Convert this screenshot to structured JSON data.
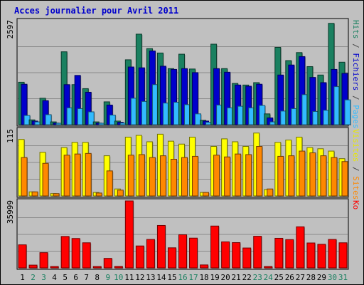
{
  "chart_data": {
    "type": "bar",
    "title": "Acces journalier pour Avril 2011",
    "categories": [
      "1",
      "2",
      "3",
      "4",
      "5",
      "6",
      "7",
      "8",
      "9",
      "10",
      "11",
      "12",
      "13",
      "14",
      "15",
      "16",
      "17",
      "18",
      "19",
      "20",
      "21",
      "22",
      "23",
      "24",
      "25",
      "26",
      "27",
      "28",
      "29",
      "30",
      "31"
    ],
    "weekend_days": [
      "2",
      "3",
      "9",
      "10",
      "16",
      "17",
      "23",
      "24",
      "30",
      "31"
    ],
    "panels": [
      {
        "id": "top",
        "ymax_label": "2597",
        "ylim": [
          0,
          2597
        ],
        "side_labels": [
          {
            "text": "Hits",
            "color": "#1a8060"
          },
          {
            "text": " / ",
            "color": "#444444"
          },
          {
            "text": "Fichiers",
            "color": "#0000cc"
          },
          {
            "text": " / ",
            "color": "#444444"
          },
          {
            "text": "Pages",
            "color": "#33bbff"
          }
        ],
        "series": [
          {
            "name": "Hits",
            "color": "#1a8060",
            "values": [
              1060,
              120,
              660,
              70,
              1820,
              1000,
              900,
              70,
              570,
              90,
              1620,
              2260,
              1900,
              1790,
              1400,
              1760,
              1390,
              110,
              2010,
              1400,
              1030,
              990,
              1050,
              270,
              1930,
              1600,
              1800,
              1450,
              1240,
              2530,
              1560
            ]
          },
          {
            "name": "Fichiers",
            "color": "#0000cc",
            "values": [
              1010,
              90,
              600,
              40,
              1000,
              1230,
              810,
              40,
              490,
              60,
              1440,
              1420,
              1840,
              1460,
              1380,
              1400,
              1300,
              90,
              1400,
              1310,
              990,
              960,
              1010,
              170,
              1240,
              1490,
              1700,
              1180,
              1050,
              1380,
              1280
            ]
          },
          {
            "name": "Pages",
            "color": "#33bbff",
            "values": [
              230,
              70,
              250,
              20,
              420,
              400,
              320,
              30,
              240,
              40,
              660,
              580,
              1000,
              540,
              560,
              500,
              270,
              60,
              490,
              420,
              460,
              420,
              480,
              70,
              340,
              400,
              750,
              330,
              360,
              950,
              620
            ]
          }
        ]
      },
      {
        "id": "middle",
        "ymax_label": "115",
        "ylim": [
          0,
          115
        ],
        "side_labels": [
          {
            "text": "Visites",
            "color": "#e8e800"
          },
          {
            "text": " / ",
            "color": "#444444"
          },
          {
            "text": "Sites",
            "color": "#ff8800"
          }
        ],
        "series": [
          {
            "name": "Visites",
            "color": "#ffff00",
            "values": [
              97,
              7,
              75,
              4,
              83,
              92,
              92,
              6,
              69,
              12,
              101,
              104,
              93,
              106,
              94,
              89,
              101,
              6,
              85,
              98,
              93,
              85,
              108,
              11,
              92,
              96,
              101,
              83,
              81,
              77,
              64
            ]
          },
          {
            "name": "Sites",
            "color": "#ff8800",
            "values": [
              66,
              7,
              56,
              4,
              70,
              72,
              73,
              5,
              43,
              10,
              70,
              71,
              66,
              69,
              63,
              66,
              68,
              6,
              70,
              67,
              72,
              71,
              85,
              12,
              68,
              69,
              77,
              74,
              69,
              66,
              59
            ]
          }
        ]
      },
      {
        "id": "bottom",
        "ymax_label": "35999",
        "ylim": [
          0,
          35999
        ],
        "side_labels": [
          {
            "text": "Ko",
            "color": "#ff0000"
          }
        ],
        "series": [
          {
            "name": "Ko",
            "color": "#ff0000",
            "values": [
              12400,
              1500,
              8200,
              600,
              16900,
              15800,
              13500,
              400,
              5100,
              800,
              36000,
              11800,
              15300,
              22800,
              10800,
              17800,
              16000,
              1600,
              22500,
              14000,
              13600,
              10700,
              17000,
              600,
              15900,
              15200,
              22100,
              13400,
              12700,
              15300,
              13500
            ]
          }
        ]
      }
    ]
  }
}
